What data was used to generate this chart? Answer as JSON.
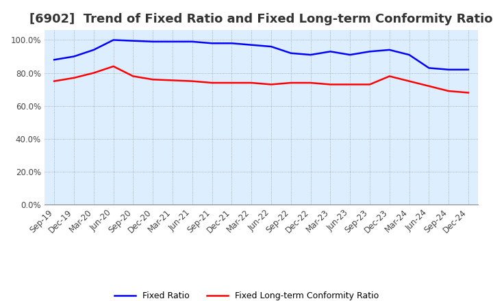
{
  "title": "[6902]  Trend of Fixed Ratio and Fixed Long-term Conformity Ratio",
  "x_labels": [
    "Sep-19",
    "Dec-19",
    "Mar-20",
    "Jun-20",
    "Sep-20",
    "Dec-20",
    "Mar-21",
    "Jun-21",
    "Sep-21",
    "Dec-21",
    "Mar-22",
    "Jun-22",
    "Sep-22",
    "Dec-22",
    "Mar-23",
    "Jun-23",
    "Sep-23",
    "Dec-23",
    "Mar-24",
    "Jun-24",
    "Sep-24",
    "Dec-24"
  ],
  "fixed_ratio": [
    88,
    90,
    94,
    100,
    99.5,
    99,
    99,
    99,
    98,
    98,
    97,
    96,
    92,
    91,
    93,
    91,
    93,
    94,
    91,
    83,
    82,
    82
  ],
  "fixed_lt_ratio": [
    75,
    77,
    80,
    84,
    78,
    76,
    75.5,
    75,
    74,
    74,
    74,
    73,
    74,
    74,
    73,
    73,
    73,
    78,
    75,
    72,
    69,
    68
  ],
  "fixed_ratio_color": "#0000FF",
  "fixed_lt_ratio_color": "#FF0000",
  "ylim": [
    0,
    106
  ],
  "yticks": [
    0,
    20,
    40,
    60,
    80,
    100
  ],
  "plot_bg_color": "#dceeff",
  "figure_bg_color": "#FFFFFF",
  "grid_color": "#888888",
  "title_fontsize": 13,
  "tick_fontsize": 8.5,
  "legend_fontsize": 9
}
